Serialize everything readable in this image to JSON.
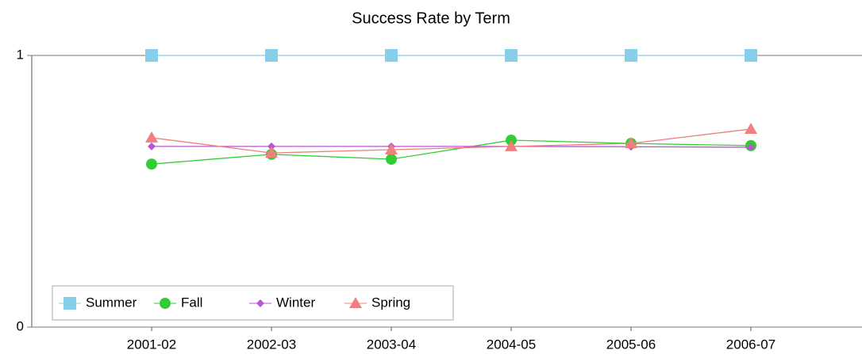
{
  "chart_data": {
    "type": "line",
    "title": "Success Rate by Term",
    "categories": [
      "2001-02",
      "2002-03",
      "2003-04",
      "2004-05",
      "2005-06",
      "2006-07"
    ],
    "series": [
      {
        "name": "Summer",
        "color": "#87ceeb",
        "marker": "square",
        "values": [
          1,
          1,
          1,
          1,
          1,
          1
        ]
      },
      {
        "name": "Fall",
        "color": "#32cd32",
        "marker": "circle",
        "values": [
          0.6,
          0.636,
          0.618,
          0.688,
          0.676,
          0.668
        ]
      },
      {
        "name": "Winter",
        "color": "#ba55d3",
        "marker": "diamond",
        "values": [
          0.665,
          0.665,
          0.665,
          0.665,
          0.664,
          0.662
        ]
      },
      {
        "name": "Spring",
        "color": "#f08080",
        "marker": "triangle",
        "values": [
          0.697,
          0.641,
          0.653,
          0.665,
          0.676,
          0.729
        ]
      }
    ],
    "ylim": [
      0,
      1
    ],
    "yticks": [
      0,
      1
    ],
    "legend": "lower left"
  }
}
